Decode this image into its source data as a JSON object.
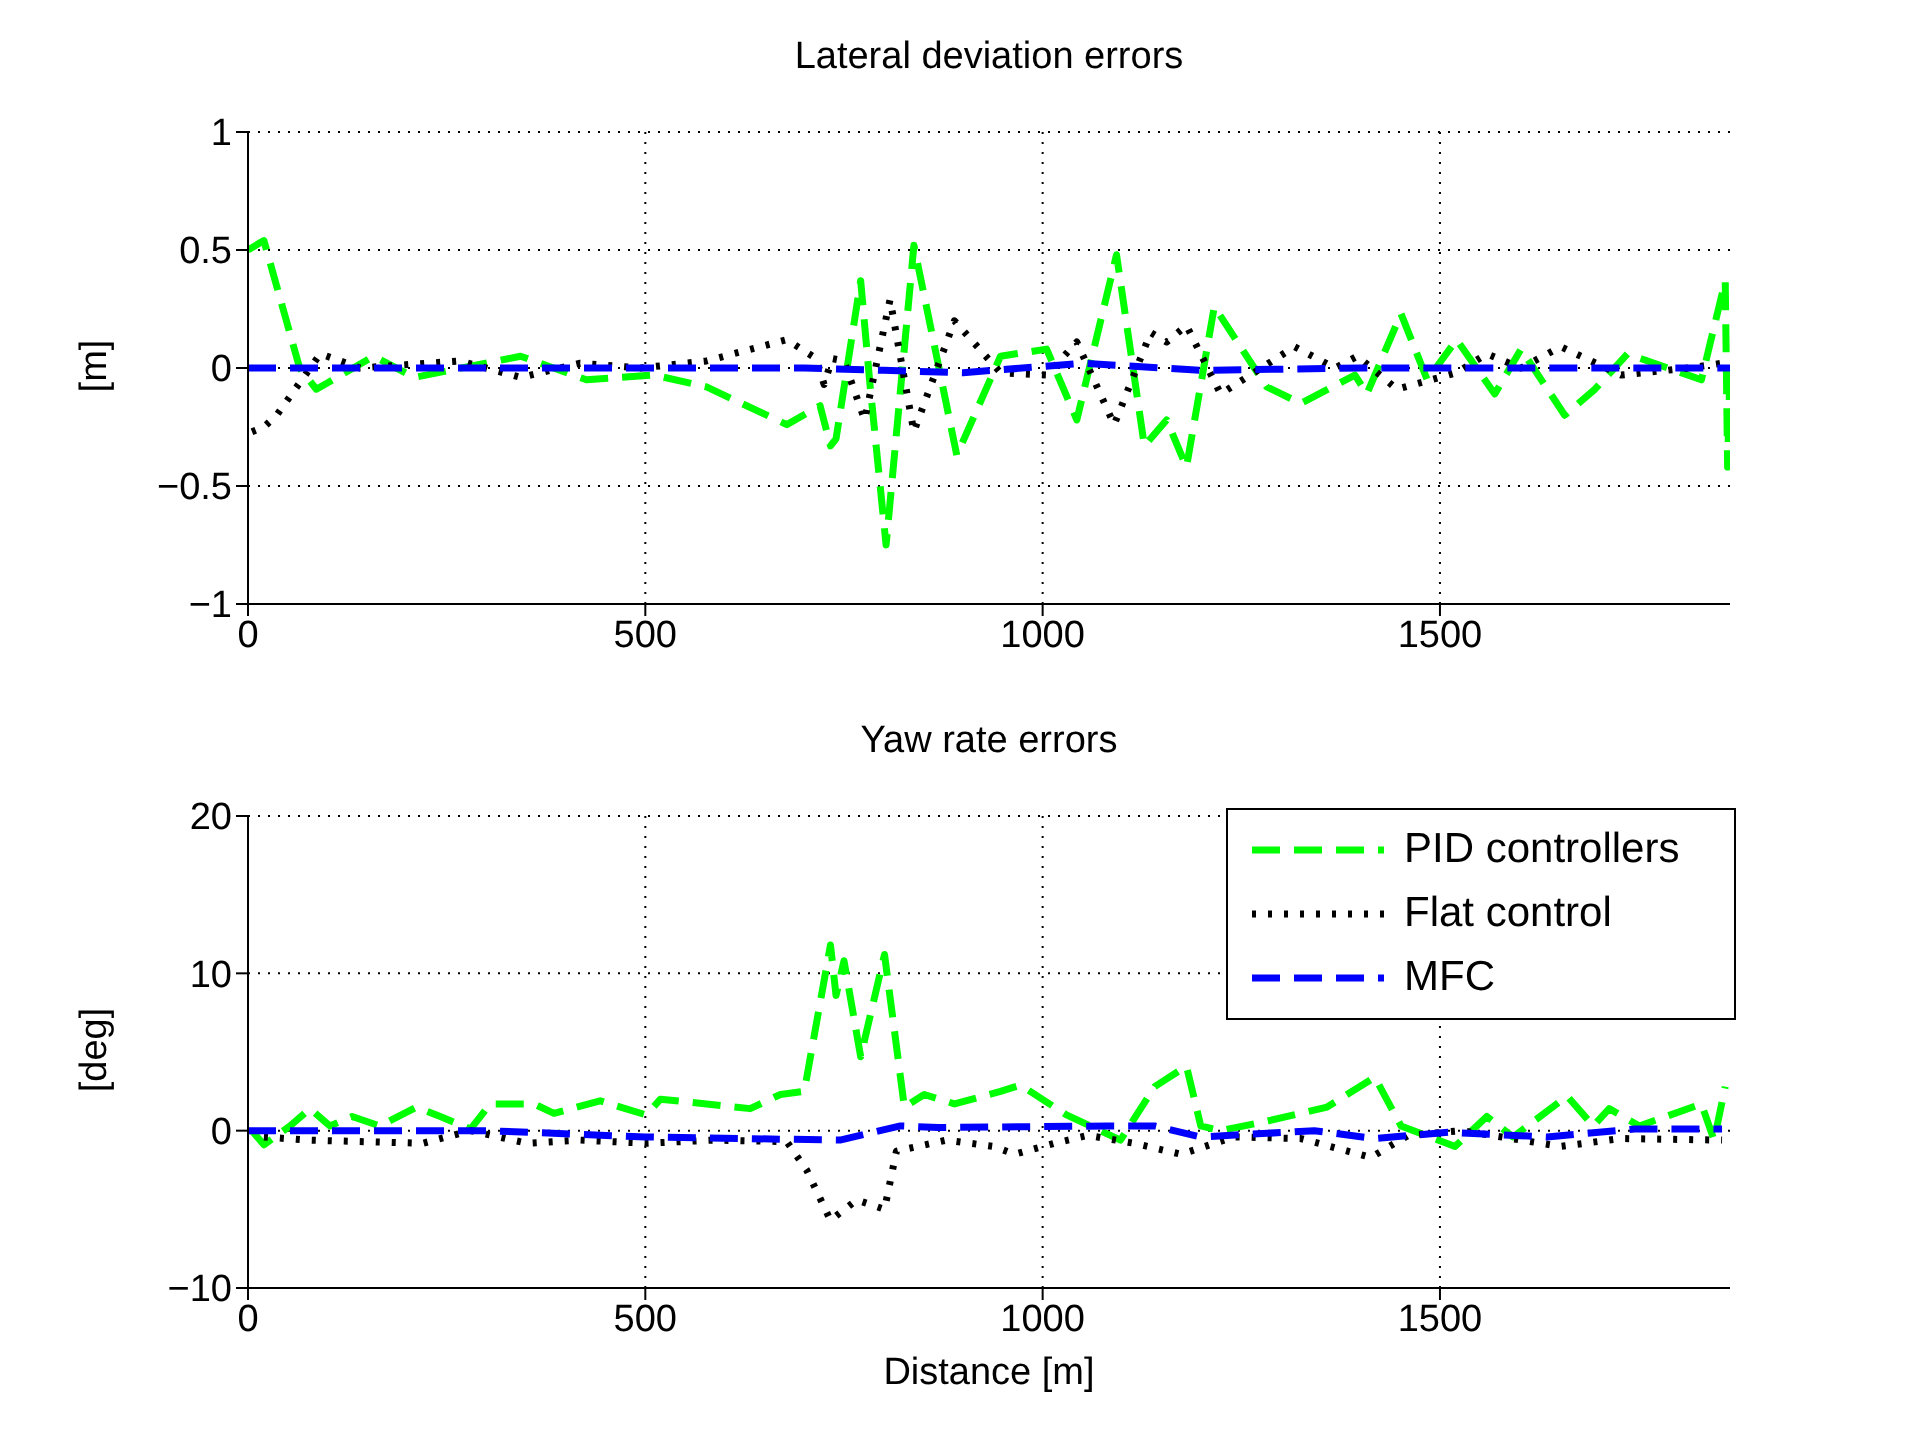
{
  "chart_data": [
    {
      "type": "line",
      "title": "Lateral deviation errors",
      "ylabel": "[m]",
      "xlim": [
        0,
        1865
      ],
      "xticks": [
        0,
        500,
        1000,
        1500
      ],
      "ylim": [
        -1,
        1
      ],
      "yticks": [
        -1,
        -0.5,
        0,
        0.5,
        1
      ],
      "grid": true,
      "legend": false,
      "series": [
        {
          "color": "#00ff00",
          "line_style": "dashed",
          "x": [
            0,
            20,
            65,
            86,
            158,
            209,
            343,
            426,
            511,
            577,
            678,
            720,
            733,
            740,
            771,
            783,
            803,
            838,
            892,
            947,
            1005,
            1043,
            1093,
            1128,
            1156,
            1181,
            1216,
            1282,
            1325,
            1393,
            1408,
            1451,
            1484,
            1521,
            1569,
            1602,
            1657,
            1695,
            1736,
            1829,
            1859,
            1862,
            1865
          ],
          "values": [
            0.5,
            0.54,
            0,
            -0.09,
            0.05,
            -0.04,
            0.05,
            -0.05,
            -0.03,
            -0.08,
            -0.24,
            -0.16,
            -0.33,
            -0.3,
            0.37,
            -0.08,
            -0.75,
            0.52,
            -0.37,
            0.05,
            0.08,
            -0.22,
            0.48,
            -0.33,
            -0.22,
            -0.42,
            0.26,
            -0.08,
            -0.15,
            -0.03,
            -0.11,
            0.23,
            -0.05,
            0.12,
            -0.11,
            0.08,
            -0.2,
            -0.09,
            0.06,
            -0.05,
            0.37,
            -0.42,
            0
          ]
        },
        {
          "color": "#000000",
          "line_style": "dotted",
          "x": [
            5,
            20,
            36,
            91,
            141,
            267,
            343,
            418,
            494,
            577,
            678,
            715,
            725,
            735,
            750,
            776,
            808,
            838,
            889,
            947,
            1005,
            1043,
            1090,
            1136,
            1156,
            1181,
            1224,
            1317,
            1368,
            1396,
            1446,
            1521,
            1559,
            1602,
            1652,
            1728,
            1813,
            1855
          ],
          "values": [
            -0.27,
            -0.25,
            -0.2,
            0.06,
            0,
            0.03,
            -0.04,
            0.02,
            0,
            0.03,
            0.12,
            0.04,
            -0.07,
            0.04,
            0.03,
            -0.22,
            0.29,
            -0.27,
            0.2,
            -0.02,
            -0.03,
            0.11,
            -0.24,
            0.15,
            0.11,
            0.18,
            -0.11,
            0.09,
            0,
            0.05,
            -0.09,
            -0.02,
            0.06,
            0,
            0.09,
            -0.03,
            0,
            0.02
          ]
        },
        {
          "color": "#0000ff",
          "line_style": "dashed",
          "x": [
            0,
            300,
            700,
            800,
            900,
            1050,
            1199,
            1400,
            1600,
            1865
          ],
          "values": [
            0,
            0,
            0,
            -0.01,
            -0.02,
            0.02,
            -0.01,
            0,
            0,
            0
          ]
        }
      ]
    },
    {
      "type": "line",
      "title": "Yaw rate errors",
      "xlabel": "Distance [m]",
      "ylabel": "[deg]",
      "xlim": [
        0,
        1865
      ],
      "xticks": [
        0,
        500,
        1000,
        1500
      ],
      "ylim": [
        -10,
        20
      ],
      "yticks": [
        -10,
        0,
        10,
        20
      ],
      "grid": true,
      "legend": "top right",
      "series": [
        {
          "name": "PID controllers",
          "color": "#00ff00",
          "line_style": "dashed",
          "x": [
            5,
            20,
            53,
            78,
            103,
            131,
            166,
            212,
            242,
            280,
            305,
            360,
            385,
            443,
            501,
            519,
            577,
            632,
            670,
            700,
            733,
            740,
            750,
            771,
            801,
            826,
            851,
            889,
            947,
            972,
            1030,
            1098,
            1141,
            1181,
            1199,
            1224,
            1282,
            1358,
            1418,
            1451,
            1519,
            1559,
            1592,
            1660,
            1693,
            1713,
            1751,
            1829,
            1845,
            1859
          ],
          "values": [
            0,
            -0.9,
            0.3,
            1.4,
            0.3,
            0.9,
            0.3,
            1.5,
            0.9,
            0.1,
            1.7,
            1.7,
            1.1,
            1.9,
            1,
            2,
            1.7,
            1.4,
            2.3,
            2.5,
            11.8,
            8.6,
            10.8,
            4.7,
            11.2,
            1.5,
            2.3,
            1.7,
            2.5,
            2.9,
            1,
            -0.6,
            2.8,
            4.1,
            0.3,
            0,
            0.6,
            1.5,
            3.4,
            0.3,
            -1,
            0.9,
            -0.4,
            2.2,
            0.3,
            1.4,
            0.3,
            1.7,
            -0.6,
            2.8
          ]
        },
        {
          "name": "Flat control",
          "color": "#000000",
          "line_style": "dotted",
          "x": [
            20,
            75,
            220,
            280,
            351,
            418,
            502,
            586,
            678,
            703,
            733,
            766,
            801,
            816,
            879,
            938,
            965,
            1015,
            1057,
            1115,
            1174,
            1241,
            1325,
            1413,
            1460,
            1527,
            1652,
            1728,
            1855
          ],
          "values": [
            -0.4,
            -0.6,
            -0.8,
            0,
            -0.8,
            -0.6,
            -0.8,
            -0.6,
            -0.7,
            -2.5,
            -5.7,
            -4.4,
            -5,
            -1.3,
            -0.6,
            -1,
            -1.5,
            -0.8,
            -0.3,
            -0.8,
            -1.5,
            -0.4,
            -0.5,
            -1.7,
            -0.3,
            0,
            -1,
            -0.5,
            -0.6
          ]
        },
        {
          "name": "MFC",
          "color": "#0000ff",
          "line_style": "dashed",
          "x": [
            0,
            300,
            500,
            745,
            821,
            869,
            1081,
            1141,
            1199,
            1342,
            1418,
            1510,
            1635,
            1745,
            1855
          ],
          "values": [
            0,
            0,
            -0.4,
            -0.6,
            0.3,
            0.2,
            0.3,
            0.3,
            -0.4,
            0,
            -0.5,
            -0.1,
            -0.4,
            0.1,
            0.1
          ]
        }
      ]
    }
  ]
}
